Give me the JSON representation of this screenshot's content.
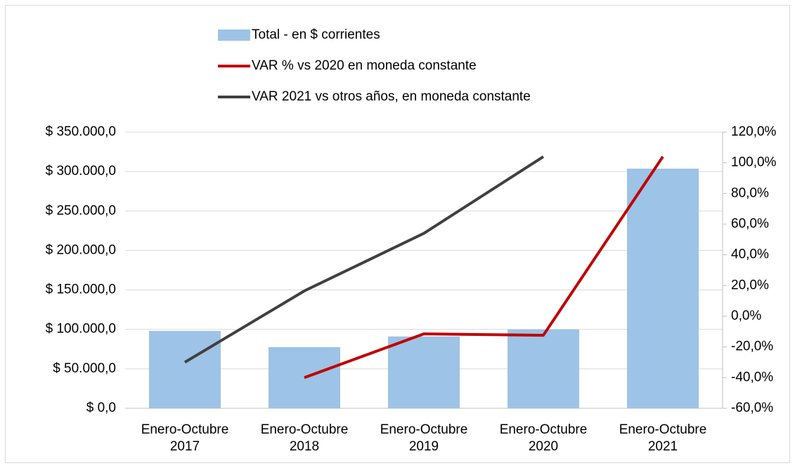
{
  "chart_data": {
    "type": "bar",
    "categories": [
      "Enero-Octubre 2017",
      "Enero-Octubre 2018",
      "Enero-Octubre 2019",
      "Enero-Octubre 2020",
      "Enero-Octubre 2021"
    ],
    "series": [
      {
        "name": "Total - en $ corrientes",
        "type": "bar",
        "color": "#9dc3e6",
        "values": [
          98000,
          77500,
          91000,
          100000,
          303700
        ]
      },
      {
        "name": "VAR % vs 2020 en moneda constante",
        "type": "line",
        "axis": "y2",
        "color": "#c00000",
        "values": [
          null,
          -40,
          -11.5,
          -12.4,
          104
        ]
      },
      {
        "name": "VAR 2021 vs otros años, en moneda constante",
        "type": "line",
        "axis": "y2",
        "color": "#404040",
        "values": [
          -30,
          16.5,
          54,
          104,
          null
        ]
      }
    ],
    "ylim": [
      0,
      350000
    ],
    "yticks": [
      {
        "value": 0,
        "label": "$ 0,0"
      },
      {
        "value": 50000,
        "label": "$ 50.000,0"
      },
      {
        "value": 100000,
        "label": "$ 100.000,0"
      },
      {
        "value": 150000,
        "label": "$ 150.000,0"
      },
      {
        "value": 200000,
        "label": "$ 200.000,0"
      },
      {
        "value": 250000,
        "label": "$ 250.000,0"
      },
      {
        "value": 300000,
        "label": "$ 300.000,0"
      },
      {
        "value": 350000,
        "label": "$ 350.000,0"
      }
    ],
    "y2lim": [
      -60,
      120
    ],
    "y2ticks": [
      {
        "value": -60,
        "label": "-60,0%"
      },
      {
        "value": -40,
        "label": "-40,0%"
      },
      {
        "value": -20,
        "label": "-20,0%"
      },
      {
        "value": 0,
        "label": "0,0%"
      },
      {
        "value": 20,
        "label": "20,0%"
      },
      {
        "value": 40,
        "label": "40,0%"
      },
      {
        "value": 60,
        "label": "60,0%"
      },
      {
        "value": 80,
        "label": "80,0%"
      },
      {
        "value": 100,
        "label": "100,0%"
      },
      {
        "value": 120,
        "label": "120,0%"
      }
    ],
    "grid": true,
    "legend": "top"
  }
}
